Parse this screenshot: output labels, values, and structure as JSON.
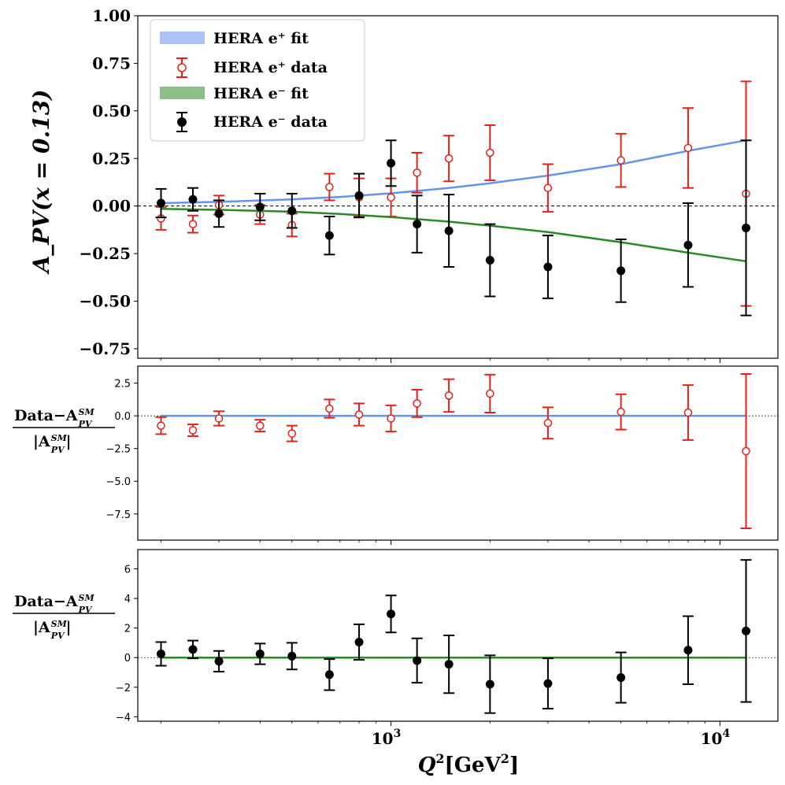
{
  "chart_data": [
    {
      "type": "line",
      "panel": "main",
      "ylabel": "A_PV(x = 0.13)",
      "ylim": [
        -0.8,
        1.0
      ],
      "yticks": [
        1.0,
        0.75,
        0.5,
        0.25,
        0.0,
        -0.25,
        -0.5,
        -0.75
      ],
      "ytick_labels": [
        "1.00",
        "0.75",
        "0.50",
        "0.25",
        "0.00",
        "−0.25",
        "−0.50",
        "−0.75"
      ],
      "xlim": [
        170,
        15000
      ],
      "xscale": "log",
      "legend": {
        "position": "top-left",
        "entries": [
          "HERA e⁺ fit",
          "HERA e⁺ data",
          "HERA e⁻ fit",
          "HERA e⁻ data"
        ]
      },
      "series": [
        {
          "name": "HERA e+ fit",
          "kind": "curve",
          "color": "#6495ed",
          "x": [
            200,
            300,
            500,
            700,
            1000,
            1500,
            2000,
            3000,
            5000,
            8000,
            12000
          ],
          "y": [
            0.015,
            0.022,
            0.035,
            0.048,
            0.067,
            0.095,
            0.12,
            0.16,
            0.22,
            0.29,
            0.345
          ]
        },
        {
          "name": "HERA e+ data",
          "kind": "points",
          "color": "#e8201a",
          "marker": "open-circle",
          "x": [
            200,
            250,
            300,
            400,
            500,
            650,
            800,
            1000,
            1200,
            1500,
            2000,
            3000,
            5000,
            8000,
            12000
          ],
          "y": [
            -0.065,
            -0.095,
            0.005,
            -0.045,
            -0.1,
            0.1,
            0.045,
            0.045,
            0.175,
            0.25,
            0.28,
            0.095,
            0.24,
            0.305,
            0.065
          ],
          "err": [
            0.06,
            0.045,
            0.05,
            0.05,
            0.06,
            0.07,
            0.1,
            0.1,
            0.105,
            0.12,
            0.145,
            0.125,
            0.14,
            0.21,
            0.59
          ]
        },
        {
          "name": "HERA e- fit",
          "kind": "curve",
          "color": "#2a8a26",
          "x": [
            200,
            300,
            500,
            700,
            1000,
            1500,
            2000,
            3000,
            5000,
            8000,
            12000
          ],
          "y": [
            -0.015,
            -0.02,
            -0.03,
            -0.042,
            -0.058,
            -0.082,
            -0.103,
            -0.137,
            -0.19,
            -0.245,
            -0.29
          ]
        },
        {
          "name": "HERA e- data",
          "kind": "points",
          "color": "#000000",
          "marker": "filled-circle",
          "x": [
            200,
            250,
            300,
            400,
            500,
            650,
            800,
            1000,
            1200,
            1500,
            2000,
            3000,
            5000,
            8000,
            12000
          ],
          "y": [
            0.015,
            0.035,
            -0.04,
            -0.005,
            -0.025,
            -0.155,
            0.055,
            0.225,
            -0.095,
            -0.13,
            -0.285,
            -0.32,
            -0.34,
            -0.205,
            -0.115
          ],
          "err": [
            0.075,
            0.06,
            0.07,
            0.07,
            0.09,
            0.1,
            0.115,
            0.12,
            0.15,
            0.19,
            0.19,
            0.165,
            0.165,
            0.22,
            0.46
          ]
        }
      ]
    },
    {
      "type": "scatter",
      "panel": "residual-positron",
      "ylabel": "(Data − A_PV^SM) / |A_PV^SM|",
      "ylabel_parts": {
        "data": "Data",
        "dash": "−",
        "a": "A",
        "sup": "SM",
        "sub": "PV"
      },
      "ylim": [
        -9.5,
        3.8
      ],
      "yticks": [
        2.5,
        0.0,
        -2.5,
        -5.0,
        -7.5
      ],
      "ytick_labels": [
        "2.5",
        "0.0",
        "−2.5",
        "−5.0",
        "−7.5"
      ],
      "reference_line": {
        "y": 0,
        "color": "#6495ed",
        "x_range": [
          200,
          12000
        ]
      },
      "series": [
        {
          "name": "HERA e+ data",
          "color": "#e8201a",
          "marker": "open-circle",
          "x": [
            200,
            250,
            300,
            400,
            500,
            650,
            800,
            1000,
            1200,
            1500,
            2000,
            3000,
            5000,
            8000,
            12000
          ],
          "y": [
            -0.75,
            -1.1,
            -0.2,
            -0.75,
            -1.35,
            0.55,
            0.1,
            -0.2,
            0.95,
            1.55,
            1.7,
            -0.55,
            0.3,
            0.25,
            -2.7
          ],
          "err": [
            0.65,
            0.45,
            0.55,
            0.45,
            0.6,
            0.7,
            0.85,
            1.0,
            1.05,
            1.25,
            1.45,
            1.2,
            1.35,
            2.1,
            5.9
          ]
        }
      ]
    },
    {
      "type": "scatter",
      "panel": "residual-electron",
      "ylabel": "(Data − A_PV^SM) / |A_PV^SM|",
      "ylabel_parts": {
        "data": "Data",
        "dash": "−",
        "a": "A",
        "sup": "SM",
        "sub": "PV"
      },
      "ylim": [
        -4.3,
        7.3
      ],
      "yticks": [
        6,
        4,
        2,
        0,
        -2,
        -4
      ],
      "ytick_labels": [
        "6",
        "4",
        "2",
        "0",
        "−2",
        "−4"
      ],
      "reference_line": {
        "y": 0,
        "color": "#2a8a26",
        "x_range": [
          200,
          12000
        ]
      },
      "series": [
        {
          "name": "HERA e- data",
          "color": "#000000",
          "marker": "filled-circle",
          "x": [
            200,
            250,
            300,
            400,
            500,
            650,
            800,
            1000,
            1200,
            1500,
            2000,
            3000,
            5000,
            8000,
            12000
          ],
          "y": [
            0.25,
            0.55,
            -0.25,
            0.25,
            0.1,
            -1.15,
            1.05,
            2.95,
            -0.2,
            -0.45,
            -1.8,
            -1.75,
            -1.35,
            0.5,
            1.8
          ],
          "err": [
            0.8,
            0.6,
            0.7,
            0.7,
            0.9,
            1.05,
            1.2,
            1.25,
            1.5,
            1.95,
            1.95,
            1.7,
            1.7,
            2.3,
            4.8
          ]
        }
      ]
    }
  ],
  "x_axis": {
    "label": "Q²[GeV²]",
    "label_parts": {
      "q": "Q",
      "q_sup": "2",
      "unit_open": "[GeV",
      "unit_sup": "2",
      "unit_close": "]"
    },
    "major_ticks": [
      1000,
      10000
    ],
    "major_tick_labels": [
      {
        "base": "10",
        "exp": "3"
      },
      {
        "base": "10",
        "exp": "4"
      }
    ],
    "minor_ticks": [
      200,
      300,
      400,
      500,
      600,
      700,
      800,
      900,
      2000,
      3000,
      4000,
      5000,
      6000,
      7000,
      8000,
      9000
    ]
  },
  "colors": {
    "ep": "#6495ed",
    "ep_data": "#e8201a",
    "em": "#2a8a26",
    "em_data": "#000000"
  }
}
